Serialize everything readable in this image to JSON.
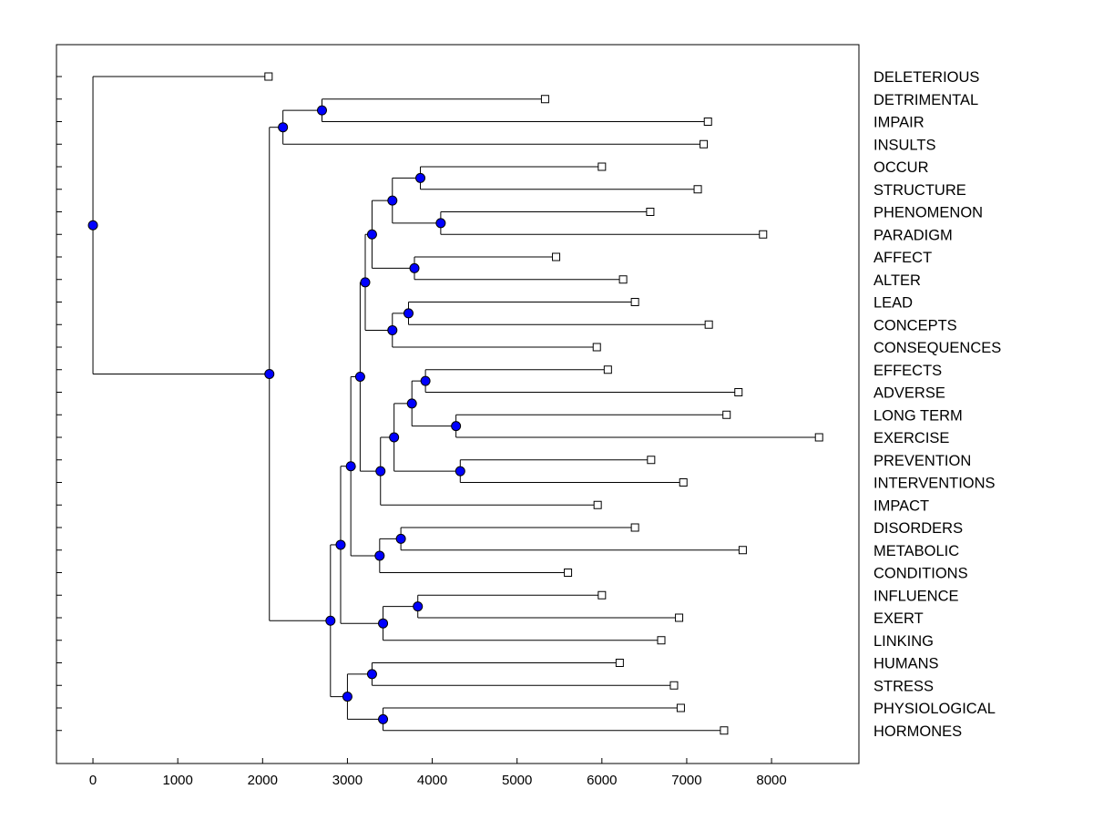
{
  "chart_data": {
    "type": "dendrogram",
    "title": "",
    "xlabel": "",
    "ylabel": "",
    "xlim": [
      -430,
      9030
    ],
    "x_ticks": [
      0,
      1000,
      2000,
      3000,
      4000,
      5000,
      6000,
      7000,
      8000
    ],
    "x_tick_labels": [
      "0",
      "1000",
      "2000",
      "3000",
      "4000",
      "5000",
      "6000",
      "7000",
      "8000"
    ],
    "node_color": "#0000ff",
    "leaves": [
      {
        "label": "DELETERIOUS",
        "value": 2070
      },
      {
        "label": "DETRIMENTAL",
        "value": 5330
      },
      {
        "label": "IMPAIR",
        "value": 7250
      },
      {
        "label": "INSULTS",
        "value": 7200
      },
      {
        "label": "OCCUR",
        "value": 6000
      },
      {
        "label": "STRUCTURE",
        "value": 7130
      },
      {
        "label": "PHENOMENON",
        "value": 6570
      },
      {
        "label": "PARADIGM",
        "value": 7900
      },
      {
        "label": "AFFECT",
        "value": 5460
      },
      {
        "label": "ALTER",
        "value": 6250
      },
      {
        "label": "LEAD",
        "value": 6390
      },
      {
        "label": "CONCEPTS",
        "value": 7260
      },
      {
        "label": "CONSEQUENCES",
        "value": 5940
      },
      {
        "label": "EFFECTS",
        "value": 6070
      },
      {
        "label": "ADVERSE",
        "value": 7610
      },
      {
        "label": "LONG TERM",
        "value": 7470
      },
      {
        "label": "EXERCISE",
        "value": 8560
      },
      {
        "label": "PREVENTION",
        "value": 6580
      },
      {
        "label": "INTERVENTIONS",
        "value": 6960
      },
      {
        "label": "IMPACT",
        "value": 5950
      },
      {
        "label": "DISORDERS",
        "value": 6390
      },
      {
        "label": "METABOLIC",
        "value": 7660
      },
      {
        "label": "CONDITIONS",
        "value": 5600
      },
      {
        "label": "INFLUENCE",
        "value": 6000
      },
      {
        "label": "EXERT",
        "value": 6910
      },
      {
        "label": "LINKING",
        "value": 6700
      },
      {
        "label": "HUMANS",
        "value": 6210
      },
      {
        "label": "STRESS",
        "value": 6850
      },
      {
        "label": "PHYSIOLOGICAL",
        "value": 6930
      },
      {
        "label": "HORMONES",
        "value": 7440
      }
    ],
    "merges": [
      {
        "id": "n1",
        "value": 2700,
        "children": [
          1,
          2
        ]
      },
      {
        "id": "n2",
        "value": 2240,
        "children": [
          "n1",
          3
        ]
      },
      {
        "id": "n3",
        "value": 3860,
        "children": [
          4,
          5
        ]
      },
      {
        "id": "n4",
        "value": 4100,
        "children": [
          6,
          7
        ]
      },
      {
        "id": "n5",
        "value": 3530,
        "children": [
          "n3",
          "n4"
        ]
      },
      {
        "id": "n6",
        "value": 3790,
        "children": [
          8,
          9
        ]
      },
      {
        "id": "n7",
        "value": 3290,
        "children": [
          "n5",
          "n6"
        ]
      },
      {
        "id": "n8",
        "value": 3720,
        "children": [
          10,
          11
        ]
      },
      {
        "id": "n9",
        "value": 3530,
        "children": [
          "n8",
          12
        ]
      },
      {
        "id": "n10",
        "value": 3210,
        "children": [
          "n7",
          "n9"
        ]
      },
      {
        "id": "n11",
        "value": 3920,
        "children": [
          13,
          14
        ]
      },
      {
        "id": "n12",
        "value": 4280,
        "children": [
          15,
          16
        ]
      },
      {
        "id": "n13",
        "value": 3760,
        "children": [
          "n11",
          "n12"
        ]
      },
      {
        "id": "n14",
        "value": 4330,
        "children": [
          17,
          18
        ]
      },
      {
        "id": "n15",
        "value": 3550,
        "children": [
          "n13",
          "n14"
        ]
      },
      {
        "id": "n16",
        "value": 3390,
        "children": [
          "n15",
          19
        ]
      },
      {
        "id": "n17",
        "value": 3150,
        "children": [
          "n10",
          "n16"
        ]
      },
      {
        "id": "n18",
        "value": 3630,
        "children": [
          20,
          21
        ]
      },
      {
        "id": "n19",
        "value": 3380,
        "children": [
          "n18",
          22
        ]
      },
      {
        "id": "n20",
        "value": 3040,
        "children": [
          "n17",
          "n19"
        ]
      },
      {
        "id": "n21",
        "value": 3830,
        "children": [
          23,
          24
        ]
      },
      {
        "id": "n22",
        "value": 3420,
        "children": [
          "n21",
          25
        ]
      },
      {
        "id": "n23",
        "value": 2920,
        "children": [
          "n20",
          "n22"
        ]
      },
      {
        "id": "n24",
        "value": 3290,
        "children": [
          26,
          27
        ]
      },
      {
        "id": "n25",
        "value": 3420,
        "children": [
          28,
          29
        ]
      },
      {
        "id": "n26",
        "value": 3000,
        "children": [
          "n24",
          "n25"
        ]
      },
      {
        "id": "n27",
        "value": 2800,
        "children": [
          "n23",
          "n26"
        ]
      },
      {
        "id": "n28",
        "value": 2080,
        "children": [
          "n2",
          "n27"
        ]
      },
      {
        "id": "n29",
        "value": 0,
        "children": [
          0,
          "n28"
        ]
      }
    ]
  }
}
